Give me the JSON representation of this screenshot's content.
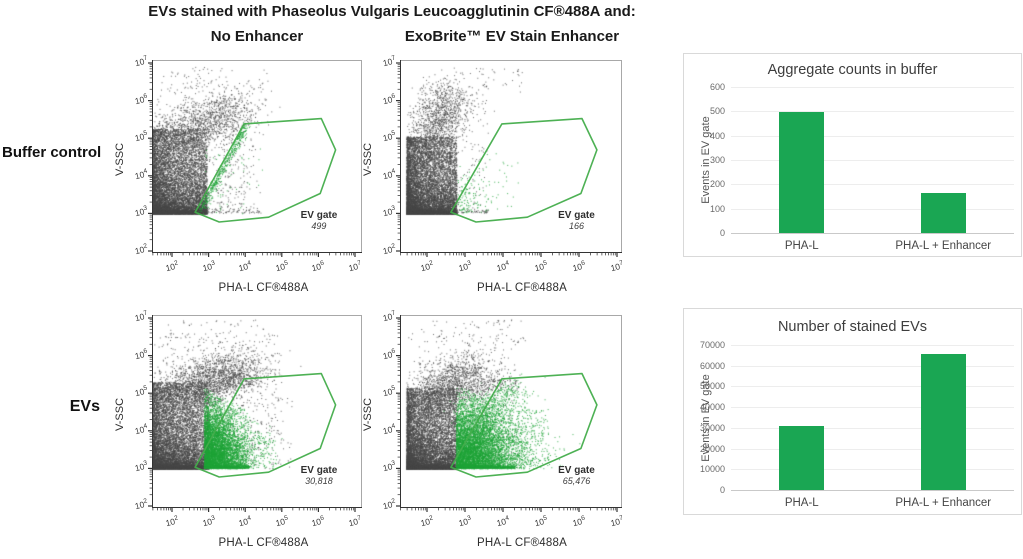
{
  "header": {
    "title": "EVs stained with Phaseolus Vulgaris Leucoagglutinin CF®488A and:",
    "columns": [
      {
        "label": "No Enhancer"
      },
      {
        "label": "ExoBrite™ EV Stain Enhancer"
      }
    ]
  },
  "rows": [
    {
      "label": "Buffer control"
    },
    {
      "label": "EVs"
    }
  ],
  "colors": {
    "bar_green": "#1aa653",
    "gate_green": "#43ad4b",
    "dot_green": "#1ea337",
    "dot_gray": "#474747",
    "grid_gray": "#ededed",
    "border_gray": "#d9d9d9",
    "axis_dark": "#333333"
  },
  "chart_data": [
    {
      "type": "scatter",
      "id": "buffer-control-no-enhancer",
      "row": "Buffer control",
      "column": "No Enhancer",
      "xlabel": "PHA-L CF®488A",
      "ylabel": "V-SSC",
      "x_scale": "log",
      "y_scale": "log",
      "x_ticks": [
        "10^2",
        "10^3",
        "10^4",
        "10^5",
        "10^6",
        "10^7"
      ],
      "y_ticks": [
        "10^7",
        "10^6",
        "10^5",
        "10^4",
        "10^3",
        "10^2"
      ],
      "gate": {
        "label": "EV gate",
        "count_label": "499",
        "count_value": 499,
        "polygon_log10": [
          [
            2.63,
            3.03
          ],
          [
            3.97,
            5.38
          ],
          [
            6.08,
            5.52
          ],
          [
            6.47,
            4.69
          ],
          [
            6.05,
            3.53
          ],
          [
            4.64,
            2.9
          ],
          [
            3.29,
            2.77
          ]
        ]
      },
      "clusters": [
        {
          "kind": "wedge",
          "color": "gray",
          "n": 10000,
          "x0": 1.46,
          "x1": 2.95,
          "px": 1.5,
          "y0": 3.0,
          "y1": 5.25,
          "py": 2.3
        },
        {
          "kind": "diag",
          "color": "gray",
          "n": 1400,
          "x0": 1.8,
          "y0": 5.0,
          "x1": 3.8,
          "y1": 5.8,
          "sx": 0.45,
          "sy": 0.3
        },
        {
          "kind": "strip",
          "color": "gray",
          "n": 1400,
          "x0": 1.46,
          "x1": 2.78,
          "y": 3.01,
          "sy": 0.04,
          "px": 1.2
        },
        {
          "kind": "uniform",
          "color": "gray",
          "n": 300,
          "x0": 1.5,
          "x1": 4.4,
          "y0": 3.0,
          "y1": 6.5
        },
        {
          "kind": "uniform",
          "color": "gray",
          "n": 60,
          "x0": 1.7,
          "x1": 4.6,
          "y0": 6.3,
          "y1": 6.9
        },
        {
          "kind": "strip",
          "color": "gray",
          "n": 90,
          "x0": 2.8,
          "x1": 4.5,
          "y": 3.02,
          "sy": 0.07,
          "px": 1
        },
        {
          "kind": "uniform",
          "color": "gray",
          "n": 120,
          "x0": 2.8,
          "x1": 4.0,
          "y0": 3.1,
          "y1": 5.2
        },
        {
          "kind": "edge",
          "color": "green",
          "n": 430,
          "x0": 2.7,
          "y0": 3.05,
          "x1": 3.95,
          "y1": 5.35,
          "ex": 0.09,
          "ey": 0.05
        },
        {
          "kind": "uniform",
          "color": "green",
          "n": 50,
          "x0": 2.9,
          "x1": 4.6,
          "y0": 3.0,
          "y1": 5.0
        }
      ]
    },
    {
      "type": "scatter",
      "id": "buffer-control-enhancer",
      "row": "Buffer control",
      "column": "ExoBrite™ EV Stain Enhancer",
      "xlabel": "PHA-L CF®488A",
      "ylabel": "V-SSC",
      "x_scale": "log",
      "y_scale": "log",
      "x_ticks": [
        "10^2",
        "10^3",
        "10^4",
        "10^5",
        "10^6",
        "10^7"
      ],
      "y_ticks": [
        "10^7",
        "10^6",
        "10^5",
        "10^4",
        "10^3",
        "10^2"
      ],
      "gate": {
        "label": "EV gate",
        "count_label": "166",
        "count_value": 166,
        "polygon_log10": [
          [
            2.63,
            3.03
          ],
          [
            3.97,
            5.38
          ],
          [
            6.08,
            5.52
          ],
          [
            6.47,
            4.69
          ],
          [
            6.05,
            3.53
          ],
          [
            4.64,
            2.9
          ],
          [
            3.29,
            2.77
          ]
        ]
      },
      "clusters": [
        {
          "kind": "wedge",
          "color": "gray",
          "n": 10000,
          "x0": 1.46,
          "x1": 2.78,
          "px": 1.5,
          "y0": 3.0,
          "y1": 5.05,
          "py": 2.3
        },
        {
          "kind": "diag",
          "color": "gray",
          "n": 1200,
          "x0": 1.95,
          "y0": 4.9,
          "x1": 2.7,
          "y1": 6.1,
          "sx": 0.3,
          "sy": 0.33
        },
        {
          "kind": "strip",
          "color": "gray",
          "n": 1400,
          "x0": 1.46,
          "x1": 2.72,
          "y": 3.01,
          "sy": 0.04,
          "px": 1.2
        },
        {
          "kind": "uniform",
          "color": "gray",
          "n": 240,
          "x0": 1.5,
          "x1": 3.6,
          "y0": 3.0,
          "y1": 6.5
        },
        {
          "kind": "uniform",
          "color": "gray",
          "n": 60,
          "x0": 1.8,
          "x1": 4.5,
          "y0": 6.2,
          "y1": 6.9
        },
        {
          "kind": "strip",
          "color": "gray",
          "n": 50,
          "x0": 2.75,
          "x1": 3.6,
          "y": 3.02,
          "sy": 0.06,
          "px": 1
        },
        {
          "kind": "halfblob",
          "color": "green",
          "n": 110,
          "x0": 2.8,
          "sx": 0.5,
          "y0": 3.02,
          "sy": 0.5,
          "ytop": 5.0,
          "slope": -0.3
        },
        {
          "kind": "uniform",
          "color": "green",
          "n": 45,
          "x0": 2.9,
          "x1": 4.4,
          "y0": 3.0,
          "y1": 4.6
        }
      ]
    },
    {
      "type": "scatter",
      "id": "evs-no-enhancer",
      "row": "EVs",
      "column": "No Enhancer",
      "xlabel": "PHA-L CF®488A",
      "ylabel": "V-SSC",
      "x_scale": "log",
      "y_scale": "log",
      "x_ticks": [
        "10^2",
        "10^3",
        "10^4",
        "10^5",
        "10^6",
        "10^7"
      ],
      "y_ticks": [
        "10^7",
        "10^6",
        "10^5",
        "10^4",
        "10^3",
        "10^2"
      ],
      "gate": {
        "label": "EV gate",
        "count_label": "30,818",
        "count_value": 30818,
        "polygon_log10": [
          [
            2.63,
            3.03
          ],
          [
            3.97,
            5.38
          ],
          [
            6.08,
            5.52
          ],
          [
            6.47,
            4.69
          ],
          [
            6.05,
            3.53
          ],
          [
            4.64,
            2.9
          ],
          [
            3.29,
            2.77
          ]
        ]
      },
      "clusters": [
        {
          "kind": "wedge",
          "color": "gray",
          "n": 10000,
          "x0": 1.46,
          "x1": 3.0,
          "px": 1.5,
          "y0": 3.0,
          "y1": 5.3,
          "py": 2.3
        },
        {
          "kind": "diag",
          "color": "gray",
          "n": 2000,
          "x0": 1.95,
          "y0": 4.9,
          "x1": 4.05,
          "y1": 5.8,
          "sx": 0.5,
          "sy": 0.3
        },
        {
          "kind": "strip",
          "color": "gray",
          "n": 1300,
          "x0": 1.46,
          "x1": 2.9,
          "y": 3.01,
          "sy": 0.04,
          "px": 1.2
        },
        {
          "kind": "uniform",
          "color": "gray",
          "n": 350,
          "x0": 1.5,
          "x1": 5.0,
          "y0": 3.0,
          "y1": 6.6
        },
        {
          "kind": "uniform",
          "color": "gray",
          "n": 70,
          "x0": 1.8,
          "x1": 4.8,
          "y0": 6.3,
          "y1": 7.0
        },
        {
          "kind": "uniform",
          "color": "gray",
          "n": 90,
          "x0": 3.3,
          "x1": 5.3,
          "y0": 3.0,
          "y1": 5.0
        },
        {
          "kind": "halfblob",
          "color": "green",
          "n": 5500,
          "x0": 2.87,
          "sx": 0.55,
          "y0": 3.0,
          "sy": 0.85,
          "ytop": 5.15,
          "slope": -0.5
        },
        {
          "kind": "strip",
          "color": "green",
          "n": 800,
          "x0": 2.87,
          "x1": 4.1,
          "y": 3.01,
          "sy": 0.05,
          "px": 1.4
        },
        {
          "kind": "uniform",
          "color": "green",
          "n": 160,
          "x0": 3.6,
          "x1": 4.85,
          "y0": 3.0,
          "y1": 3.9
        },
        {
          "kind": "diag",
          "color": "gray",
          "n": 250,
          "x0": 2.95,
          "y0": 5.1,
          "x1": 4.0,
          "y1": 5.45,
          "sx": 0.25,
          "sy": 0.12
        }
      ]
    },
    {
      "type": "scatter",
      "id": "evs-enhancer",
      "row": "EVs",
      "column": "ExoBrite™ EV Stain Enhancer",
      "xlabel": "PHA-L CF®488A",
      "ylabel": "V-SSC",
      "x_scale": "log",
      "y_scale": "log",
      "x_ticks": [
        "10^2",
        "10^3",
        "10^4",
        "10^5",
        "10^6",
        "10^7"
      ],
      "y_ticks": [
        "10^7",
        "10^6",
        "10^5",
        "10^4",
        "10^3",
        "10^2"
      ],
      "gate": {
        "label": "EV gate",
        "count_label": "65,476",
        "count_value": 65476,
        "polygon_log10": [
          [
            2.63,
            3.03
          ],
          [
            3.97,
            5.38
          ],
          [
            6.08,
            5.52
          ],
          [
            6.47,
            4.69
          ],
          [
            6.05,
            3.53
          ],
          [
            4.64,
            2.9
          ],
          [
            3.29,
            2.77
          ]
        ]
      },
      "clusters": [
        {
          "kind": "wedge",
          "color": "gray",
          "n": 9500,
          "x0": 1.46,
          "x1": 2.78,
          "px": 1.5,
          "y0": 3.0,
          "y1": 5.15,
          "py": 2.3
        },
        {
          "kind": "diag",
          "color": "gray",
          "n": 1400,
          "x0": 1.95,
          "y0": 4.8,
          "x1": 3.2,
          "y1": 5.7,
          "sx": 0.35,
          "sy": 0.3
        },
        {
          "kind": "strip",
          "color": "gray",
          "n": 1300,
          "x0": 1.46,
          "x1": 2.72,
          "y": 3.01,
          "sy": 0.04,
          "px": 1.2
        },
        {
          "kind": "uniform",
          "color": "gray",
          "n": 280,
          "x0": 1.5,
          "x1": 4.4,
          "y0": 3.0,
          "y1": 6.6
        },
        {
          "kind": "uniform",
          "color": "gray",
          "n": 60,
          "x0": 1.8,
          "x1": 4.6,
          "y0": 6.3,
          "y1": 7.0
        },
        {
          "kind": "halfblob",
          "color": "green",
          "n": 6500,
          "x0": 2.76,
          "sx": 0.8,
          "y0": 3.0,
          "sy": 0.85,
          "ytop": 5.2,
          "slope": -0.3
        },
        {
          "kind": "strip",
          "color": "green",
          "n": 900,
          "x0": 2.76,
          "x1": 4.3,
          "y": 3.01,
          "sy": 0.05,
          "px": 1.4
        },
        {
          "kind": "diag",
          "color": "green",
          "n": 450,
          "x0": 3.2,
          "y0": 4.3,
          "x1": 4.35,
          "y1": 5.15,
          "sx": 0.3,
          "sy": 0.18
        },
        {
          "kind": "uniform",
          "color": "green",
          "n": 200,
          "x0": 4.1,
          "x1": 5.2,
          "y0": 3.0,
          "y1": 4.6
        },
        {
          "kind": "diag",
          "color": "gray",
          "n": 220,
          "x0": 3.0,
          "y0": 5.0,
          "x1": 4.2,
          "y1": 5.4,
          "sx": 0.25,
          "sy": 0.12
        }
      ]
    },
    {
      "type": "bar",
      "id": "aggregate-counts-in-buffer",
      "title": "Aggregate counts in buffer",
      "categories": [
        "PHA-L",
        "PHA-L + Enhancer"
      ],
      "values": [
        499,
        166
      ],
      "xlabel": "",
      "ylabel": "Events in EV gate",
      "ylim": [
        0,
        600
      ],
      "yticks": [
        0,
        100,
        200,
        300,
        400,
        500,
        600
      ],
      "grid": true,
      "legend": "none"
    },
    {
      "type": "bar",
      "id": "number-of-stained-evs",
      "title": "Number of stained EVs",
      "categories": [
        "PHA-L",
        "PHA-L + Enhancer"
      ],
      "values": [
        30818,
        65476
      ],
      "xlabel": "",
      "ylabel": "Events in EV gate",
      "ylim": [
        0,
        70000
      ],
      "yticks": [
        0,
        10000,
        20000,
        30000,
        40000,
        50000,
        60000,
        70000
      ],
      "grid": true,
      "legend": "none"
    }
  ]
}
